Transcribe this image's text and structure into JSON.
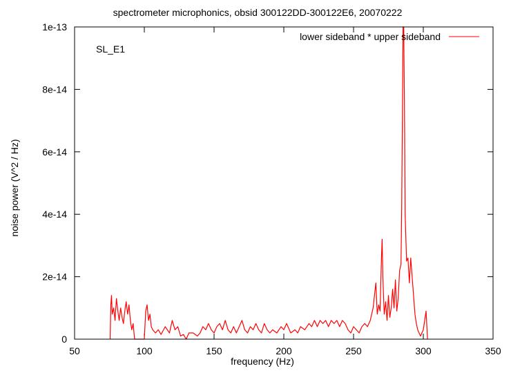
{
  "chart_data": {
    "type": "line",
    "title": "spectrometer microphonics, obsid 300122DD-300122E6, 20070222",
    "xlabel": "frequency (Hz)",
    "ylabel": "noise power (V^2 / Hz)",
    "annotation": "SL_E1",
    "xlim": [
      50,
      350
    ],
    "ylim": [
      0,
      1e-13
    ],
    "x_ticks": [
      {
        "value": 50,
        "label": "50"
      },
      {
        "value": 100,
        "label": "100"
      },
      {
        "value": 150,
        "label": "150"
      },
      {
        "value": 200,
        "label": "200"
      },
      {
        "value": 250,
        "label": "250"
      },
      {
        "value": 300,
        "label": "300"
      },
      {
        "value": 350,
        "label": "350"
      }
    ],
    "y_ticks": [
      {
        "value": 0,
        "label": "0"
      },
      {
        "value": 2e-14,
        "label": "2e-14"
      },
      {
        "value": 4e-14,
        "label": "4e-14"
      },
      {
        "value": 6e-14,
        "label": "6e-14"
      },
      {
        "value": 8e-14,
        "label": "8e-14"
      },
      {
        "value": 1e-13,
        "label": "1e-13"
      }
    ],
    "legend_position": "top-right",
    "series": [
      {
        "name": "lower sideband * upper sideband",
        "color": "#ff0000",
        "points": [
          [
            75.5,
            0
          ],
          [
            76,
            1.1e-14
          ],
          [
            76.5,
            1.4e-14
          ],
          [
            77,
            8e-15
          ],
          [
            78,
            1e-14
          ],
          [
            79,
            6e-15
          ],
          [
            80,
            1.3e-14
          ],
          [
            81,
            9e-15
          ],
          [
            82,
            6e-15
          ],
          [
            83,
            1e-14
          ],
          [
            84,
            7e-15
          ],
          [
            85,
            5e-15
          ],
          [
            86,
            9e-15
          ],
          [
            87,
            1.2e-14
          ],
          [
            88,
            8e-15
          ],
          [
            89,
            1.1e-14
          ],
          [
            90,
            6e-15
          ],
          [
            91,
            3e-15
          ],
          [
            92,
            5e-15
          ],
          [
            93,
            0
          ],
          [
            94,
            0
          ],
          [
            100,
            0
          ],
          [
            101,
            9e-15
          ],
          [
            102,
            1.1e-14
          ],
          [
            103,
            6e-15
          ],
          [
            104,
            8e-15
          ],
          [
            105,
            4e-15
          ],
          [
            106,
            3e-15
          ],
          [
            108,
            2e-15
          ],
          [
            110,
            3e-15
          ],
          [
            112,
            1.5e-15
          ],
          [
            115,
            4e-15
          ],
          [
            118,
            2e-15
          ],
          [
            120,
            6e-15
          ],
          [
            122,
            3e-15
          ],
          [
            124,
            4e-15
          ],
          [
            126,
            1e-15
          ],
          [
            128,
            1.5e-15
          ],
          [
            130,
            0
          ],
          [
            132,
            2e-15
          ],
          [
            135,
            2e-15
          ],
          [
            138,
            1e-15
          ],
          [
            140,
            2e-15
          ],
          [
            142,
            4e-15
          ],
          [
            144,
            3e-15
          ],
          [
            146,
            5e-15
          ],
          [
            148,
            3e-15
          ],
          [
            150,
            2e-15
          ],
          [
            152,
            4e-15
          ],
          [
            154,
            5e-15
          ],
          [
            156,
            3e-15
          ],
          [
            158,
            6e-15
          ],
          [
            160,
            3e-15
          ],
          [
            162,
            2e-15
          ],
          [
            164,
            4e-15
          ],
          [
            166,
            2e-15
          ],
          [
            168,
            4e-15
          ],
          [
            170,
            6e-15
          ],
          [
            172,
            3e-15
          ],
          [
            174,
            2e-15
          ],
          [
            176,
            4e-15
          ],
          [
            178,
            3e-15
          ],
          [
            180,
            5e-15
          ],
          [
            182,
            3e-15
          ],
          [
            184,
            2e-15
          ],
          [
            186,
            5e-15
          ],
          [
            188,
            3e-15
          ],
          [
            190,
            2e-15
          ],
          [
            192,
            3e-15
          ],
          [
            195,
            2e-15
          ],
          [
            198,
            4e-15
          ],
          [
            200,
            3e-15
          ],
          [
            202,
            5e-15
          ],
          [
            205,
            2e-15
          ],
          [
            208,
            3e-15
          ],
          [
            210,
            2e-15
          ],
          [
            212,
            4e-15
          ],
          [
            215,
            3e-15
          ],
          [
            218,
            5e-15
          ],
          [
            220,
            4e-15
          ],
          [
            222,
            6e-15
          ],
          [
            224,
            4e-15
          ],
          [
            226,
            6e-15
          ],
          [
            228,
            5e-15
          ],
          [
            230,
            6e-15
          ],
          [
            232,
            4e-15
          ],
          [
            234,
            6e-15
          ],
          [
            236,
            5e-15
          ],
          [
            238,
            6e-15
          ],
          [
            240,
            4e-15
          ],
          [
            242,
            6e-15
          ],
          [
            244,
            5e-15
          ],
          [
            246,
            3e-15
          ],
          [
            248,
            2e-15
          ],
          [
            250,
            4e-15
          ],
          [
            252,
            3e-15
          ],
          [
            254,
            2e-15
          ],
          [
            256,
            4e-15
          ],
          [
            258,
            5e-15
          ],
          [
            260,
            4e-15
          ],
          [
            262,
            6e-15
          ],
          [
            264,
            1e-14
          ],
          [
            266,
            1.8e-14
          ],
          [
            267,
            8e-15
          ],
          [
            268,
            1.1e-14
          ],
          [
            269,
            9e-15
          ],
          [
            270,
            2.6e-14
          ],
          [
            270.5,
            3.2e-14
          ],
          [
            271,
            2e-14
          ],
          [
            272,
            8e-15
          ],
          [
            273,
            1.2e-14
          ],
          [
            274,
            6e-15
          ],
          [
            275,
            1.4e-14
          ],
          [
            276,
            7e-15
          ],
          [
            277,
            1e-14
          ],
          [
            278,
            1.6e-14
          ],
          [
            279,
            1e-14
          ],
          [
            280,
            1.9e-14
          ],
          [
            281,
            9e-15
          ],
          [
            282,
            1.3e-14
          ],
          [
            283,
            2.2e-14
          ],
          [
            284,
            2.4e-14
          ],
          [
            284.5,
            4.2e-14
          ],
          [
            285,
            7e-14
          ],
          [
            285.5,
            1e-13
          ],
          [
            286,
            1e-13
          ],
          [
            286.5,
            7.5e-14
          ],
          [
            287,
            4e-14
          ],
          [
            288,
            2.5e-14
          ],
          [
            289,
            2.6e-14
          ],
          [
            290,
            1.8e-14
          ],
          [
            291,
            2.6e-14
          ],
          [
            292,
            2e-14
          ],
          [
            293,
            1.4e-14
          ],
          [
            294,
            8e-15
          ],
          [
            295,
            5e-15
          ],
          [
            296,
            3e-15
          ],
          [
            297,
            2e-15
          ],
          [
            298,
            1e-15
          ],
          [
            300,
            3e-15
          ],
          [
            301,
            6e-15
          ],
          [
            302,
            9e-15
          ],
          [
            303,
            0
          ]
        ]
      }
    ]
  }
}
